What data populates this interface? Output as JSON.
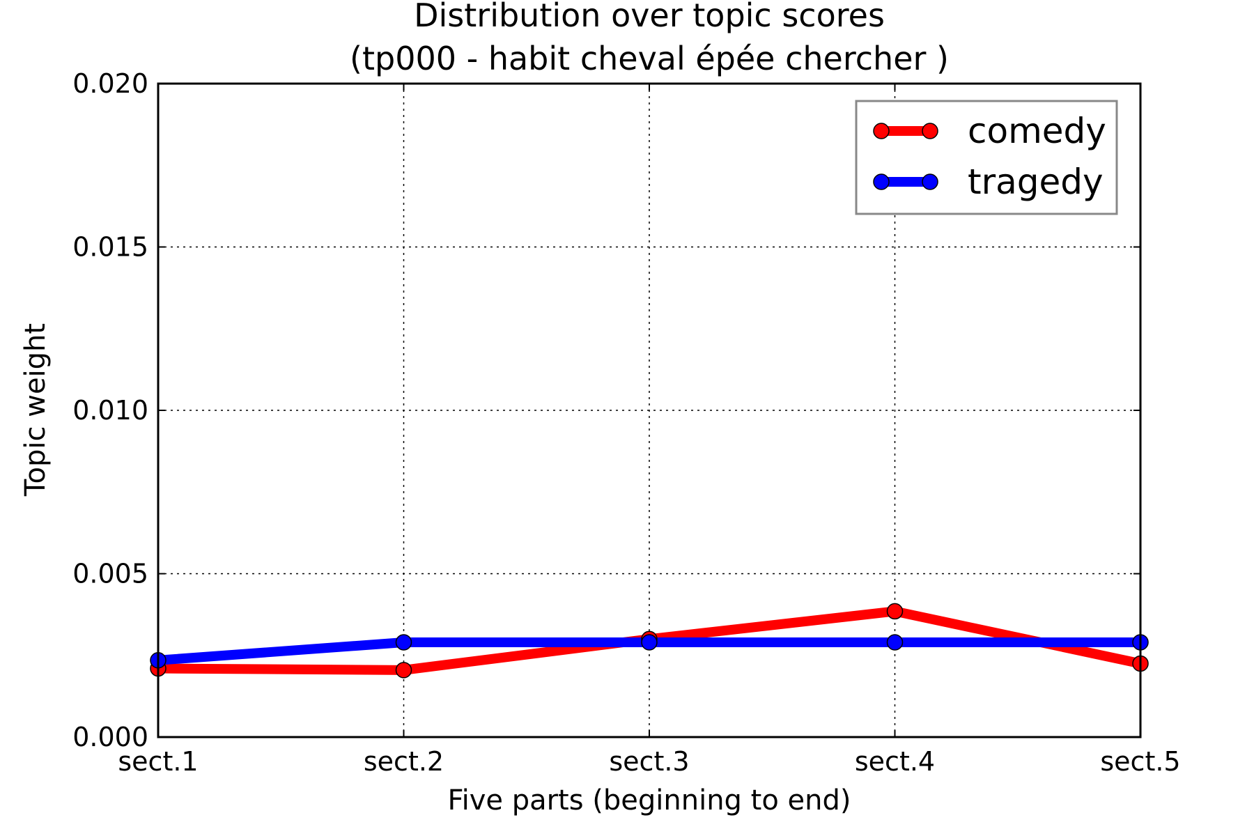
{
  "chart_data": {
    "type": "line",
    "title": "Distribution over topic scores",
    "subtitle": "(tp000 - habit cheval épée chercher )",
    "xlabel": "Five parts (beginning to end)",
    "ylabel": "Topic weight",
    "categories": [
      "sect.1",
      "sect.2",
      "sect.3",
      "sect.4",
      "sect.5"
    ],
    "ylim": [
      0,
      0.02
    ],
    "yticks": [
      "0.000",
      "0.005",
      "0.010",
      "0.015",
      "0.020"
    ],
    "ytick_values": [
      0,
      0.005,
      0.01,
      0.015,
      0.02
    ],
    "grid": true,
    "legend_position": "top-right",
    "series": [
      {
        "name": "comedy",
        "color": "#ff0000",
        "values": [
          0.0021,
          0.00205,
          0.003,
          0.00385,
          0.00225
        ]
      },
      {
        "name": "tragedy",
        "color": "#0000ff",
        "values": [
          0.00235,
          0.0029,
          0.0029,
          0.0029,
          0.0029
        ]
      }
    ]
  }
}
